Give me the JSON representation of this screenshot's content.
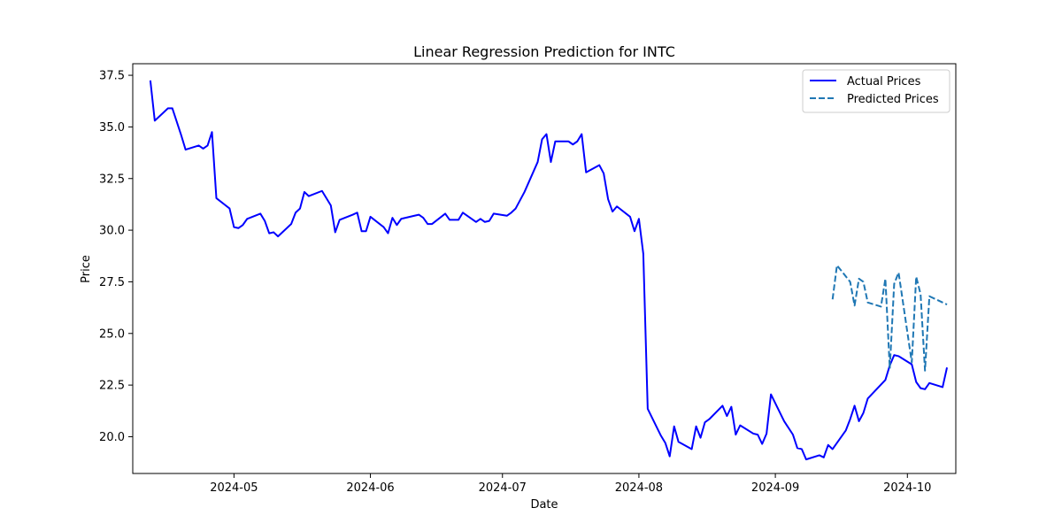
{
  "chart_data": {
    "type": "line",
    "title": "Linear Regression Prediction for INTC",
    "xlabel": "Date",
    "ylabel": "Price",
    "xlim": [
      "2024-04-08",
      "2024-10-12"
    ],
    "ylim": [
      18.22,
      38.06
    ],
    "x_ticks": [
      "2024-05-01",
      "2024-06-01",
      "2024-07-01",
      "2024-08-01",
      "2024-09-01",
      "2024-10-01"
    ],
    "x_tick_labels": [
      "2024-05",
      "2024-06",
      "2024-07",
      "2024-08",
      "2024-09",
      "2024-10"
    ],
    "y_ticks": [
      20.0,
      22.5,
      25.0,
      27.5,
      30.0,
      32.5,
      35.0,
      37.5
    ],
    "y_tick_labels": [
      "20.0",
      "22.5",
      "25.0",
      "27.5",
      "30.0",
      "32.5",
      "35.0",
      "37.5"
    ],
    "grid": false,
    "legend_position": "top-right",
    "series": [
      {
        "name": "Actual Prices",
        "color": "#0000ff",
        "style": "solid",
        "points": [
          [
            "2024-04-12",
            37.25
          ],
          [
            "2024-04-13",
            35.3
          ],
          [
            "2024-04-16",
            35.9
          ],
          [
            "2024-04-17",
            35.9
          ],
          [
            "2024-04-19",
            34.6
          ],
          [
            "2024-04-20",
            33.9
          ],
          [
            "2024-04-23",
            34.1
          ],
          [
            "2024-04-24",
            33.95
          ],
          [
            "2024-04-25",
            34.1
          ],
          [
            "2024-04-26",
            34.75
          ],
          [
            "2024-04-27",
            31.55
          ],
          [
            "2024-04-30",
            31.05
          ],
          [
            "2024-05-01",
            30.15
          ],
          [
            "2024-05-02",
            30.1
          ],
          [
            "2024-05-03",
            30.25
          ],
          [
            "2024-05-04",
            30.55
          ],
          [
            "2024-05-07",
            30.8
          ],
          [
            "2024-05-08",
            30.45
          ],
          [
            "2024-05-09",
            29.85
          ],
          [
            "2024-05-10",
            29.9
          ],
          [
            "2024-05-11",
            29.7
          ],
          [
            "2024-05-14",
            30.3
          ],
          [
            "2024-05-15",
            30.85
          ],
          [
            "2024-05-16",
            31.05
          ],
          [
            "2024-05-17",
            31.85
          ],
          [
            "2024-05-18",
            31.65
          ],
          [
            "2024-05-21",
            31.9
          ],
          [
            "2024-05-23",
            31.2
          ],
          [
            "2024-05-24",
            29.9
          ],
          [
            "2024-05-25",
            30.5
          ],
          [
            "2024-05-28",
            30.75
          ],
          [
            "2024-05-29",
            30.85
          ],
          [
            "2024-05-30",
            29.95
          ],
          [
            "2024-05-31",
            29.95
          ],
          [
            "2024-06-01",
            30.65
          ],
          [
            "2024-06-04",
            30.15
          ],
          [
            "2024-06-05",
            29.85
          ],
          [
            "2024-06-06",
            30.6
          ],
          [
            "2024-06-07",
            30.25
          ],
          [
            "2024-06-08",
            30.55
          ],
          [
            "2024-06-11",
            30.7
          ],
          [
            "2024-06-12",
            30.75
          ],
          [
            "2024-06-13",
            30.6
          ],
          [
            "2024-06-14",
            30.3
          ],
          [
            "2024-06-15",
            30.3
          ],
          [
            "2024-06-18",
            30.8
          ],
          [
            "2024-06-19",
            30.5
          ],
          [
            "2024-06-21",
            30.5
          ],
          [
            "2024-06-22",
            30.85
          ],
          [
            "2024-06-25",
            30.4
          ],
          [
            "2024-06-26",
            30.55
          ],
          [
            "2024-06-27",
            30.4
          ],
          [
            "2024-06-28",
            30.45
          ],
          [
            "2024-06-29",
            30.8
          ],
          [
            "2024-07-02",
            30.7
          ],
          [
            "2024-07-03",
            30.85
          ],
          [
            "2024-07-04",
            31.05
          ],
          [
            "2024-07-06",
            31.85
          ],
          [
            "2024-07-09",
            33.3
          ],
          [
            "2024-07-10",
            34.4
          ],
          [
            "2024-07-11",
            34.65
          ],
          [
            "2024-07-12",
            33.3
          ],
          [
            "2024-07-13",
            34.3
          ],
          [
            "2024-07-16",
            34.3
          ],
          [
            "2024-07-17",
            34.15
          ],
          [
            "2024-07-18",
            34.3
          ],
          [
            "2024-07-19",
            34.65
          ],
          [
            "2024-07-20",
            32.8
          ],
          [
            "2024-07-23",
            33.15
          ],
          [
            "2024-07-24",
            32.75
          ],
          [
            "2024-07-25",
            31.5
          ],
          [
            "2024-07-26",
            30.9
          ],
          [
            "2024-07-27",
            31.15
          ],
          [
            "2024-07-30",
            30.65
          ],
          [
            "2024-07-31",
            29.95
          ],
          [
            "2024-08-01",
            30.55
          ],
          [
            "2024-08-02",
            28.85
          ],
          [
            "2024-08-03",
            21.35
          ],
          [
            "2024-08-06",
            20.05
          ],
          [
            "2024-08-07",
            19.7
          ],
          [
            "2024-08-08",
            19.05
          ],
          [
            "2024-08-09",
            20.5
          ],
          [
            "2024-08-10",
            19.75
          ],
          [
            "2024-08-13",
            19.4
          ],
          [
            "2024-08-14",
            20.5
          ],
          [
            "2024-08-15",
            19.95
          ],
          [
            "2024-08-16",
            20.7
          ],
          [
            "2024-08-17",
            20.85
          ],
          [
            "2024-08-20",
            21.5
          ],
          [
            "2024-08-21",
            21.0
          ],
          [
            "2024-08-22",
            21.45
          ],
          [
            "2024-08-23",
            20.1
          ],
          [
            "2024-08-24",
            20.55
          ],
          [
            "2024-08-27",
            20.15
          ],
          [
            "2024-08-28",
            20.1
          ],
          [
            "2024-08-29",
            19.65
          ],
          [
            "2024-08-30",
            20.15
          ],
          [
            "2024-08-31",
            22.05
          ],
          [
            "2024-09-03",
            20.75
          ],
          [
            "2024-09-05",
            20.1
          ],
          [
            "2024-09-06",
            19.45
          ],
          [
            "2024-09-07",
            19.4
          ],
          [
            "2024-09-08",
            18.9
          ],
          [
            "2024-09-11",
            19.1
          ],
          [
            "2024-09-12",
            19.0
          ],
          [
            "2024-09-13",
            19.6
          ],
          [
            "2024-09-14",
            19.4
          ],
          [
            "2024-09-17",
            20.3
          ],
          [
            "2024-09-18",
            20.85
          ],
          [
            "2024-09-19",
            21.5
          ],
          [
            "2024-09-20",
            20.75
          ],
          [
            "2024-09-21",
            21.15
          ],
          [
            "2024-09-22",
            21.85
          ],
          [
            "2024-09-26",
            22.75
          ],
          [
            "2024-09-27",
            23.45
          ],
          [
            "2024-09-28",
            23.95
          ],
          [
            "2024-09-29",
            23.9
          ],
          [
            "2024-10-02",
            23.5
          ],
          [
            "2024-10-03",
            22.65
          ],
          [
            "2024-10-04",
            22.35
          ],
          [
            "2024-10-05",
            22.3
          ],
          [
            "2024-10-06",
            22.6
          ],
          [
            "2024-10-09",
            22.4
          ],
          [
            "2024-10-10",
            23.35
          ]
        ]
      },
      {
        "name": "Predicted Prices",
        "color": "#1f77b4",
        "style": "dashed",
        "points": [
          [
            "2024-09-14",
            26.65
          ],
          [
            "2024-09-15",
            28.3
          ],
          [
            "2024-09-18",
            27.5
          ],
          [
            "2024-09-19",
            26.35
          ],
          [
            "2024-09-20",
            27.65
          ],
          [
            "2024-09-21",
            27.5
          ],
          [
            "2024-09-22",
            26.5
          ],
          [
            "2024-09-25",
            26.3
          ],
          [
            "2024-09-26",
            27.65
          ],
          [
            "2024-09-27",
            23.3
          ],
          [
            "2024-09-28",
            27.4
          ],
          [
            "2024-09-29",
            27.95
          ],
          [
            "2024-10-02",
            23.6
          ],
          [
            "2024-10-03",
            27.75
          ],
          [
            "2024-10-04",
            26.9
          ],
          [
            "2024-10-05",
            23.2
          ],
          [
            "2024-10-06",
            26.8
          ],
          [
            "2024-10-10",
            26.4
          ]
        ]
      }
    ]
  }
}
